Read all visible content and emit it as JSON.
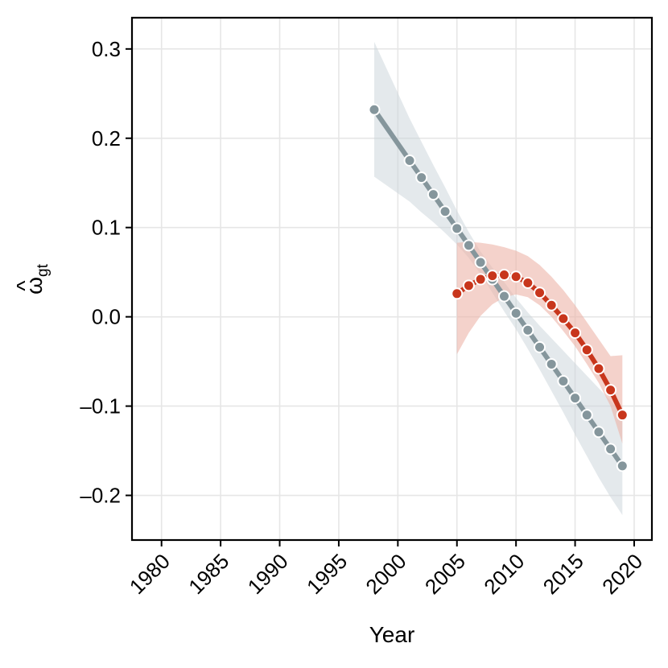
{
  "chart_data": {
    "type": "line",
    "title": "",
    "xlabel": "Year",
    "ylabel": {
      "base": "ω",
      "hat": "^",
      "sub": "gt"
    },
    "xlim": [
      1977.5,
      2021.5
    ],
    "ylim": [
      -0.25,
      0.335
    ],
    "x_ticks": [
      1980,
      1985,
      1990,
      1995,
      2000,
      2005,
      2010,
      2015,
      2020
    ],
    "x_tick_labels": [
      "1980",
      "1985",
      "1990",
      "1995",
      "2000",
      "2005",
      "2010",
      "2015",
      "2020"
    ],
    "y_ticks": [
      0.3,
      0.2,
      0.1,
      0.0,
      -0.1,
      -0.2
    ],
    "y_tick_labels": [
      "0.3",
      "0.2",
      "0.1",
      "0.0",
      "–0.1",
      "–0.2"
    ],
    "grid": true,
    "series": [
      {
        "color": "#85969c",
        "ribbon_color": "#c9d3da",
        "x": [
          1998,
          2001,
          2002,
          2003,
          2004,
          2005,
          2006,
          2007,
          2008,
          2009,
          2010,
          2011,
          2012,
          2013,
          2014,
          2015,
          2016,
          2017,
          2018,
          2019
        ],
        "y": [
          0.232,
          0.175,
          0.156,
          0.137,
          0.118,
          0.099,
          0.08,
          0.061,
          0.042,
          0.023,
          0.004,
          -0.015,
          -0.034,
          -0.053,
          -0.072,
          -0.091,
          -0.11,
          -0.129,
          -0.148,
          -0.167
        ],
        "lower": [
          0.157,
          0.129,
          0.117,
          0.106,
          0.094,
          0.081,
          0.066,
          0.048,
          0.027,
          0.006,
          -0.014,
          -0.036,
          -0.059,
          -0.083,
          -0.107,
          -0.132,
          -0.156,
          -0.18,
          -0.202,
          -0.222
        ],
        "upper": [
          0.308,
          0.222,
          0.196,
          0.17,
          0.145,
          0.119,
          0.095,
          0.073,
          0.055,
          0.039,
          0.021,
          0.005,
          -0.01,
          -0.024,
          -0.038,
          -0.052,
          -0.066,
          -0.08,
          -0.094,
          -0.11
        ]
      },
      {
        "color": "#c8361c",
        "ribbon_color": "#ecb4a8",
        "x": [
          2005,
          2006,
          2007,
          2008,
          2009,
          2010,
          2011,
          2012,
          2013,
          2014,
          2015,
          2016,
          2017,
          2018,
          2019
        ],
        "y": [
          0.026,
          0.035,
          0.042,
          0.046,
          0.047,
          0.045,
          0.038,
          0.027,
          0.013,
          -0.002,
          -0.018,
          -0.037,
          -0.058,
          -0.082,
          -0.11
        ],
        "lower": [
          -0.042,
          -0.018,
          0.001,
          0.014,
          0.022,
          0.025,
          0.022,
          0.013,
          0.0,
          -0.016,
          -0.033,
          -0.053,
          -0.074,
          -0.1,
          -0.142
        ],
        "upper": [
          0.083,
          0.084,
          0.083,
          0.081,
          0.078,
          0.074,
          0.068,
          0.058,
          0.045,
          0.03,
          0.013,
          -0.006,
          -0.025,
          -0.044,
          -0.043
        ]
      }
    ]
  }
}
